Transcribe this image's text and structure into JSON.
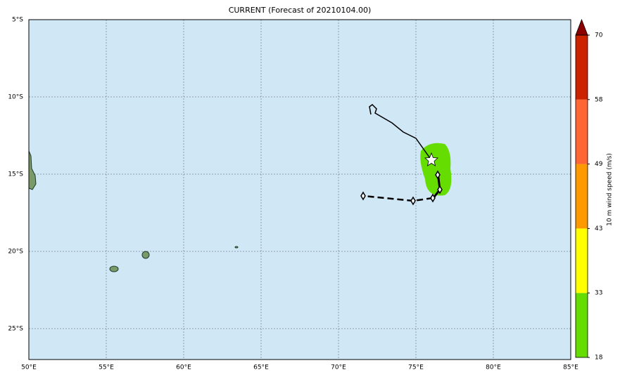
{
  "title": "CURRENT (Forecast of 20210104.00)",
  "map": {
    "xlim": [
      50,
      85
    ],
    "ylim": [
      -27,
      -5
    ],
    "xticks": [
      {
        "value": 50,
        "label": "50°E"
      },
      {
        "value": 55,
        "label": "55°E"
      },
      {
        "value": 60,
        "label": "60°E"
      },
      {
        "value": 65,
        "label": "65°E"
      },
      {
        "value": 70,
        "label": "70°E"
      },
      {
        "value": 75,
        "label": "75°E"
      },
      {
        "value": 80,
        "label": "80°E"
      },
      {
        "value": 85,
        "label": "85°E"
      }
    ],
    "yticks": [
      {
        "value": -5,
        "label": "5°S"
      },
      {
        "value": -10,
        "label": "10°S"
      },
      {
        "value": -15,
        "label": "15°S"
      },
      {
        "value": -20,
        "label": "20°S"
      },
      {
        "value": -25,
        "label": "25°S"
      }
    ],
    "ocean_color": "#d0e7f6"
  },
  "colorbar": {
    "label": "10 m wind speed (m/s)",
    "ticks": [
      18,
      33,
      43,
      49,
      58,
      70
    ],
    "colors": [
      "#66dd00",
      "#ffff00",
      "#ff9900",
      "#ff6633",
      "#cc2200"
    ],
    "extend_color": "#8b0000"
  }
}
